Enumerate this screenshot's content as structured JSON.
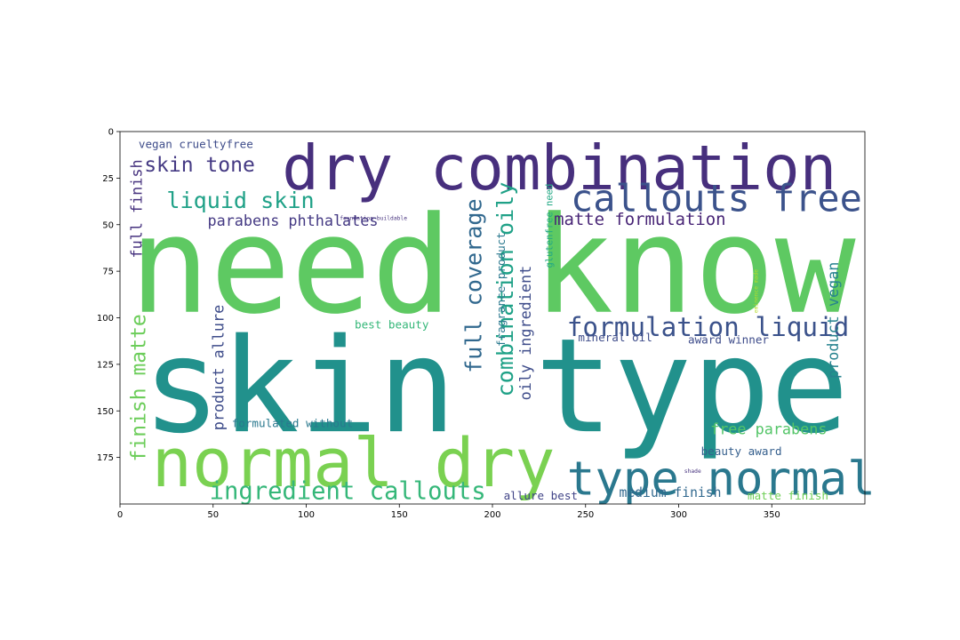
{
  "chart_data": {
    "type": "wordcloud",
    "title": "",
    "xlabel": "",
    "ylabel": "",
    "xlim": [
      0,
      400
    ],
    "ylim": [
      200,
      0
    ],
    "grid": false,
    "x_ticks": [
      0,
      50,
      100,
      150,
      200,
      250,
      300,
      350
    ],
    "y_ticks": [
      0,
      25,
      50,
      75,
      100,
      125,
      150,
      175
    ],
    "words": [
      {
        "text": "need know",
        "x": 5,
        "y": 30,
        "size": 72,
        "color": "#5ec962",
        "rotate": 0
      },
      {
        "text": "skin type",
        "x": 12,
        "y": 96,
        "size": 70,
        "color": "#21918c",
        "rotate": 0
      },
      {
        "text": "dry combination",
        "x": 87,
        "y": 1,
        "size": 33,
        "color": "#472f7d",
        "rotate": 0
      },
      {
        "text": "normal dry",
        "x": 17,
        "y": 157,
        "size": 36,
        "color": "#7ad151",
        "rotate": 0
      },
      {
        "text": "type normal",
        "x": 240,
        "y": 172,
        "size": 25,
        "color": "#2a788e",
        "rotate": 0
      },
      {
        "text": "callouts free",
        "x": 242,
        "y": 24,
        "size": 20,
        "color": "#3b528b",
        "rotate": 0
      },
      {
        "text": "formulation liquid",
        "x": 240,
        "y": 97,
        "size": 14,
        "color": "#3b528b",
        "rotate": 0
      },
      {
        "text": "ingredient callouts",
        "x": 48,
        "y": 186,
        "size": 13,
        "color": "#35b779",
        "rotate": 0
      },
      {
        "text": "liquid skin",
        "x": 25,
        "y": 30,
        "size": 12,
        "color": "#1fa187",
        "rotate": 0
      },
      {
        "text": "skin tone",
        "x": 13,
        "y": 12,
        "size": 11,
        "color": "#443983",
        "rotate": 0
      },
      {
        "text": "matte formulation",
        "x": 233,
        "y": 42,
        "size": 9,
        "color": "#482576",
        "rotate": 0
      },
      {
        "text": "full coverage",
        "x": 183,
        "y": 36,
        "size": 12,
        "color": "#31688e",
        "rotate": -90
      },
      {
        "text": "combination oily",
        "x": 200,
        "y": 27,
        "size": 12,
        "color": "#1fa187",
        "rotate": -90
      },
      {
        "text": "finish matte",
        "x": 4,
        "y": 98,
        "size": 11,
        "color": "#6ccd5a",
        "rotate": -90
      },
      {
        "text": "full finish",
        "x": 4,
        "y": 15,
        "size": 8,
        "color": "#46327e",
        "rotate": -90
      },
      {
        "text": "parabens phthalates",
        "x": 47,
        "y": 43,
        "size": 8,
        "color": "#443983",
        "rotate": 0
      },
      {
        "text": "free parabens",
        "x": 317,
        "y": 155,
        "size": 8,
        "color": "#54c568",
        "rotate": 0
      },
      {
        "text": "product allure",
        "x": 48,
        "y": 93,
        "size": 8,
        "color": "#3e4c8a",
        "rotate": -90
      },
      {
        "text": "oily ingredient",
        "x": 213,
        "y": 72,
        "size": 8,
        "color": "#3e4c8a",
        "rotate": -90
      },
      {
        "text": "product vegan",
        "x": 378,
        "y": 70,
        "size": 8,
        "color": "#26828e",
        "rotate": -90
      },
      {
        "text": "medium finish",
        "x": 268,
        "y": 190,
        "size": 7,
        "color": "#31688e",
        "rotate": 0
      },
      {
        "text": "matte finish",
        "x": 337,
        "y": 192,
        "size": 6,
        "color": "#70cf57",
        "rotate": 0
      },
      {
        "text": "allure best",
        "x": 206,
        "y": 192,
        "size": 6,
        "color": "#414487",
        "rotate": 0
      },
      {
        "text": "beauty award",
        "x": 312,
        "y": 168,
        "size": 6,
        "color": "#355f8d",
        "rotate": 0
      },
      {
        "text": "vegan crueltyfree",
        "x": 10,
        "y": 3,
        "size": 6,
        "color": "#3e4c8a",
        "rotate": 0
      },
      {
        "text": "formulated without",
        "x": 60,
        "y": 153,
        "size": 6,
        "color": "#2a788e",
        "rotate": 0
      },
      {
        "text": "best beauty",
        "x": 126,
        "y": 100,
        "size": 6,
        "color": "#35b779",
        "rotate": 0
      },
      {
        "text": "mineral oil",
        "x": 246,
        "y": 107,
        "size": 6,
        "color": "#3e4c8a",
        "rotate": 0
      },
      {
        "text": "award winner",
        "x": 305,
        "y": 108,
        "size": 6,
        "color": "#3e4c8a",
        "rotate": 0
      },
      {
        "text": "fragrance product",
        "x": 201,
        "y": 54,
        "size": 6,
        "color": "#2a788e",
        "rotate": -90
      },
      {
        "text": "glutenfree need",
        "x": 228,
        "y": 28,
        "size": 5,
        "color": "#22a884",
        "rotate": -90
      },
      {
        "text": "eminence made",
        "x": 340,
        "y": 74,
        "size": 3,
        "color": "#b5de2b",
        "rotate": -90
      },
      {
        "text": "foundation buildable",
        "x": 118,
        "y": 45,
        "size": 3,
        "color": "#46327e",
        "rotate": 0
      },
      {
        "text": "shade",
        "x": 303,
        "y": 181,
        "size": 3,
        "color": "#46327e",
        "rotate": 0
      }
    ]
  }
}
